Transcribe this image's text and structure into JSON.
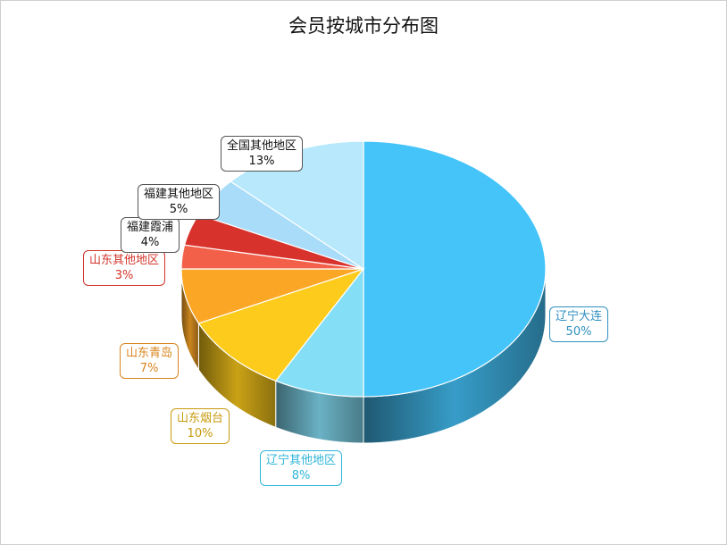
{
  "chart_data": {
    "type": "pie",
    "title": "会员按城市分布图",
    "slices": [
      {
        "name": "辽宁大连",
        "percent_label": "50%",
        "value": 50,
        "color": "#45c4fa",
        "label_color": "#2f8fbf"
      },
      {
        "name": "辽宁其他地区",
        "percent_label": "8%",
        "value": 8,
        "color": "#84dff6",
        "label_color": "#2eb5d8"
      },
      {
        "name": "山东烟台",
        "percent_label": "10%",
        "value": 10,
        "color": "#fccb1b",
        "label_color": "#c79a0c"
      },
      {
        "name": "山东青岛",
        "percent_label": "7%",
        "value": 7,
        "color": "#fca626",
        "label_color": "#d9841c"
      },
      {
        "name": "山东其他地区",
        "percent_label": "3%",
        "value": 3,
        "color": "#f3604a",
        "label_color": "#d2342a"
      },
      {
        "name": "福建霞浦",
        "percent_label": "4%",
        "value": 4,
        "color": "#d8322c",
        "label_color": "#555555"
      },
      {
        "name": "福建其他地区",
        "percent_label": "5%",
        "value": 5,
        "color": "#a8dcf9",
        "label_color": "#555555"
      },
      {
        "name": "全国其他地区",
        "percent_label": "13%",
        "value": 13,
        "color": "#b7e8fb",
        "label_color": "#555555"
      }
    ]
  }
}
